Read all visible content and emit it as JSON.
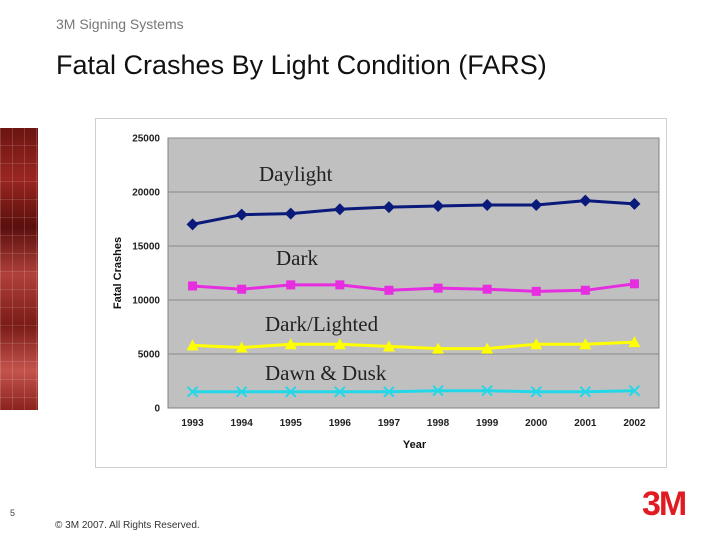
{
  "header": {
    "company": "3M Signing Systems"
  },
  "slide": {
    "title": "Fatal Crashes By Light Condition (FARS)",
    "page_number": "5",
    "copyright": "© 3M 2007. All Rights Reserved.",
    "logo_text": "3M"
  },
  "labels": {
    "daylight": "Daylight",
    "dark": "Dark",
    "dark_lighted": "Dark/Lighted",
    "dawn_dusk": "Dawn & Dusk"
  },
  "chart_data": {
    "type": "line",
    "x": [
      "1993",
      "1994",
      "1995",
      "1996",
      "1997",
      "1998",
      "1999",
      "2000",
      "2001",
      "2002"
    ],
    "xlabel": "Year",
    "ylabel": "Fatal Crashes",
    "ylim": [
      0,
      25000
    ],
    "yticks": [
      0,
      5000,
      10000,
      15000,
      20000,
      25000
    ],
    "grid": true,
    "plot_background": "#c0c0c0",
    "series": [
      {
        "name": "Daylight",
        "color": "#0a1a7a",
        "marker": "diamond",
        "values": [
          17000,
          17900,
          18000,
          18400,
          18600,
          18700,
          18800,
          18800,
          19200,
          18900
        ]
      },
      {
        "name": "Dark",
        "color": "#e62de0",
        "marker": "square",
        "values": [
          11300,
          11000,
          11400,
          11400,
          10900,
          11100,
          11000,
          10800,
          10900,
          11500
        ]
      },
      {
        "name": "Dark/Lighted",
        "color": "#ffff00",
        "marker": "triangle",
        "values": [
          5800,
          5600,
          5900,
          5900,
          5700,
          5500,
          5500,
          5900,
          5900,
          6100
        ]
      },
      {
        "name": "Dawn & Dusk",
        "color": "#22d8e8",
        "marker": "x",
        "values": [
          1500,
          1500,
          1500,
          1500,
          1500,
          1600,
          1600,
          1500,
          1500,
          1600
        ]
      }
    ]
  }
}
